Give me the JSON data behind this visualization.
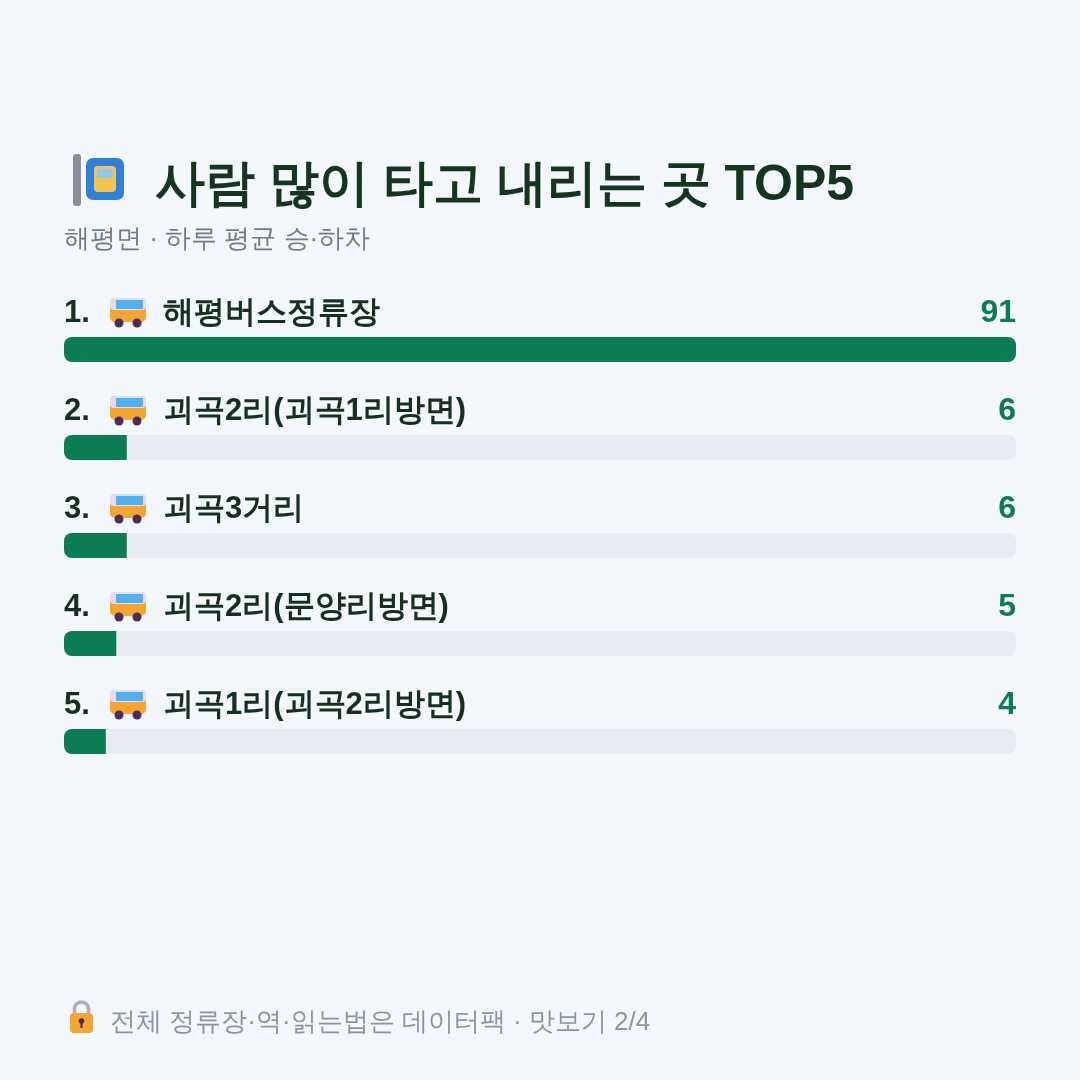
{
  "chart_data": {
    "type": "bar",
    "orientation": "horizontal",
    "title": "사람 많이 타고 내리는 곳 TOP5",
    "subtitle": "해평면 · 하루 평균 승·하차",
    "categories": [
      "1. 해평버스정류장",
      "2. 괴곡2리(괴곡1리방면)",
      "3. 괴곡3거리",
      "4. 괴곡2리(문양리방면)",
      "5. 괴곡1리(괴곡2리방면)"
    ],
    "values": [
      91,
      6,
      6,
      5,
      4
    ],
    "color": "#0b7c54",
    "data_labels": true,
    "annotations": [
      "전체 정류장·역·읽는법은 데이터팩 · 맛보기 2/4"
    ]
  }
}
